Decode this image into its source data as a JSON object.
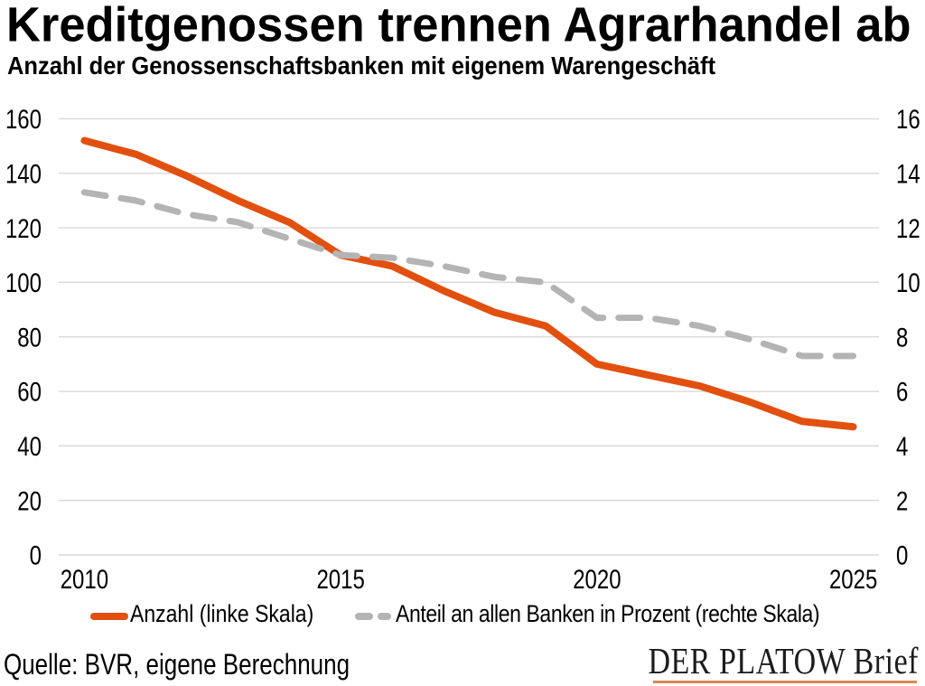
{
  "title": "Kreditgenossen trennen Agrarhandel ab",
  "subtitle": "Anzahl der Genossenschaftsbanken mit eigenem Warengeschäft",
  "source": "Quelle: BVR, eigene Berechnung",
  "logo": {
    "text": "DER PLATOW Brief"
  },
  "colors": {
    "anzahl_line": "#E2500F",
    "anteil_line": "#B4B4B4",
    "gridline": "#D9D9D9",
    "text": "#000000",
    "logo_underline": "#DE8754"
  },
  "chart_data": {
    "type": "line",
    "x": [
      2010,
      2011,
      2012,
      2013,
      2014,
      2015,
      2016,
      2017,
      2018,
      2019,
      2020,
      2021,
      2022,
      2023,
      2024,
      2025
    ],
    "series": [
      {
        "name": "Anzahl (linke Skala)",
        "axis": "left",
        "style": "solid",
        "color": "#E2500F",
        "values": [
          152,
          147,
          139,
          130,
          122,
          110,
          106,
          97,
          89,
          84,
          70,
          66,
          62,
          56,
          49,
          47
        ]
      },
      {
        "name": "Anteil an allen Banken in Prozent (rechte Skala)",
        "axis": "right",
        "style": "dashed",
        "color": "#B4B4B4",
        "values": [
          13.3,
          13.0,
          12.5,
          12.2,
          11.6,
          11.0,
          10.9,
          10.6,
          10.2,
          10.0,
          8.7,
          8.7,
          8.4,
          7.9,
          7.3,
          7.3
        ]
      }
    ],
    "left_axis": {
      "min": 0,
      "max": 160,
      "step": 20
    },
    "right_axis": {
      "min": 0,
      "max": 16,
      "step": 2
    },
    "x_ticks": [
      2010,
      2015,
      2020,
      2025
    ],
    "grid": true,
    "legend_position": "bottom"
  }
}
